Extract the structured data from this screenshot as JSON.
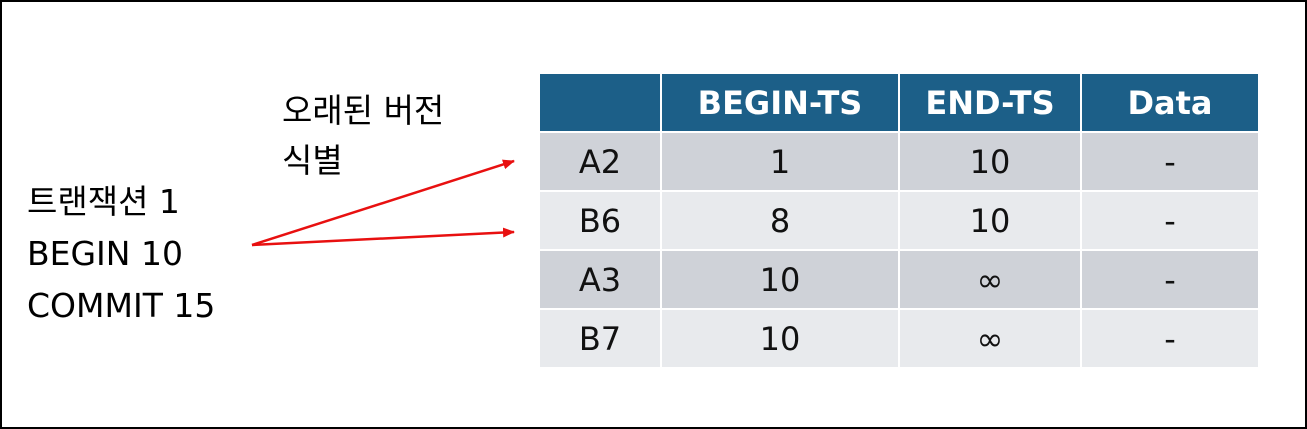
{
  "annotation": {
    "line1": "오래된 버전",
    "line2": "식별"
  },
  "transaction": {
    "line1": "트랜잭션 1",
    "line2": "BEGIN 10",
    "line3": "COMMIT 15"
  },
  "table": {
    "headers": [
      "",
      "BEGIN-TS",
      "END-TS",
      "Data"
    ],
    "rows": [
      [
        "A2",
        "1",
        "10",
        "-"
      ],
      [
        "B6",
        "8",
        "10",
        "-"
      ],
      [
        "A3",
        "10",
        "∞",
        "-"
      ],
      [
        "B7",
        "10",
        "∞",
        "-"
      ]
    ]
  },
  "colors": {
    "header_bg": "#1c5f88",
    "row_dark": "#cfd2d8",
    "row_light": "#e8eaed",
    "arrow": "#e81010"
  }
}
